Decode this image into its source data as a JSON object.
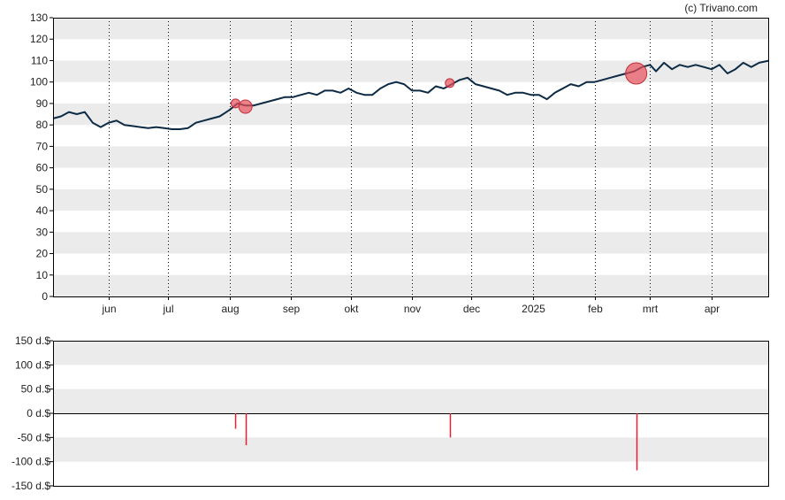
{
  "copyright": "(c) Trivano.com",
  "colors": {
    "band": "#ebebeb",
    "line": "#0d2b45",
    "marker": "#e8505b",
    "grid": "#000000",
    "frame": "#000000",
    "bar": "#e8202f"
  },
  "chart_data": [
    {
      "type": "line",
      "xlim": [
        "2024-05-04",
        "2025-04-30"
      ],
      "ylim": [
        0,
        130
      ],
      "y_ticks": [
        "0",
        "10",
        "20",
        "30",
        "40",
        "50",
        "60",
        "70",
        "80",
        "90",
        "100",
        "110",
        "120",
        "130"
      ],
      "x_ticks": [
        {
          "date": "2024-06-01",
          "label": "jun"
        },
        {
          "date": "2024-07-01",
          "label": "jul"
        },
        {
          "date": "2024-08-01",
          "label": "aug"
        },
        {
          "date": "2024-09-01",
          "label": "sep"
        },
        {
          "date": "2024-10-01",
          "label": "okt"
        },
        {
          "date": "2024-11-01",
          "label": "nov"
        },
        {
          "date": "2024-12-01",
          "label": "dec"
        },
        {
          "date": "2025-01-01",
          "label": "2025"
        },
        {
          "date": "2025-02-01",
          "label": "feb"
        },
        {
          "date": "2025-03-01",
          "label": "mrt"
        },
        {
          "date": "2025-04-01",
          "label": "apr"
        }
      ],
      "grid": "vertical dotted at month ticks, alternating horizontal bands",
      "series": [
        {
          "points": [
            [
              "2024-05-04",
              83
            ],
            [
              "2024-05-08",
              84
            ],
            [
              "2024-05-12",
              86
            ],
            [
              "2024-05-16",
              85
            ],
            [
              "2024-05-20",
              86
            ],
            [
              "2024-05-24",
              81
            ],
            [
              "2024-05-28",
              79
            ],
            [
              "2024-06-01",
              81
            ],
            [
              "2024-06-05",
              82
            ],
            [
              "2024-06-09",
              80
            ],
            [
              "2024-06-13",
              79.5
            ],
            [
              "2024-06-17",
              79
            ],
            [
              "2024-06-21",
              78.5
            ],
            [
              "2024-06-25",
              79
            ],
            [
              "2024-06-29",
              78.5
            ],
            [
              "2024-07-03",
              78
            ],
            [
              "2024-07-07",
              78
            ],
            [
              "2024-07-11",
              78.5
            ],
            [
              "2024-07-15",
              81
            ],
            [
              "2024-07-19",
              82
            ],
            [
              "2024-07-23",
              83
            ],
            [
              "2024-07-27",
              84
            ],
            [
              "2024-08-01",
              87
            ],
            [
              "2024-08-05",
              90
            ],
            [
              "2024-08-09",
              89
            ],
            [
              "2024-08-13",
              89
            ],
            [
              "2024-08-17",
              90
            ],
            [
              "2024-08-21",
              91
            ],
            [
              "2024-08-25",
              92
            ],
            [
              "2024-08-29",
              93
            ],
            [
              "2024-09-02",
              93
            ],
            [
              "2024-09-06",
              94
            ],
            [
              "2024-09-10",
              95
            ],
            [
              "2024-09-14",
              94
            ],
            [
              "2024-09-18",
              96
            ],
            [
              "2024-09-22",
              96
            ],
            [
              "2024-09-26",
              95
            ],
            [
              "2024-09-30",
              97
            ],
            [
              "2024-10-04",
              95
            ],
            [
              "2024-10-08",
              94
            ],
            [
              "2024-10-12",
              94
            ],
            [
              "2024-10-16",
              97
            ],
            [
              "2024-10-20",
              99
            ],
            [
              "2024-10-24",
              100
            ],
            [
              "2024-10-28",
              99
            ],
            [
              "2024-11-01",
              96
            ],
            [
              "2024-11-05",
              96
            ],
            [
              "2024-11-09",
              95
            ],
            [
              "2024-11-13",
              98
            ],
            [
              "2024-11-17",
              97
            ],
            [
              "2024-11-21",
              99
            ],
            [
              "2024-11-25",
              101
            ],
            [
              "2024-11-29",
              102
            ],
            [
              "2024-12-03",
              99
            ],
            [
              "2024-12-07",
              98
            ],
            [
              "2024-12-11",
              97
            ],
            [
              "2024-12-15",
              96
            ],
            [
              "2024-12-19",
              94
            ],
            [
              "2024-12-23",
              95
            ],
            [
              "2024-12-27",
              95
            ],
            [
              "2024-12-31",
              94
            ],
            [
              "2025-01-04",
              94
            ],
            [
              "2025-01-08",
              92
            ],
            [
              "2025-01-12",
              95
            ],
            [
              "2025-01-16",
              97
            ],
            [
              "2025-01-20",
              99
            ],
            [
              "2025-01-24",
              98
            ],
            [
              "2025-01-28",
              100
            ],
            [
              "2025-02-01",
              100
            ],
            [
              "2025-02-05",
              101
            ],
            [
              "2025-02-09",
              102
            ],
            [
              "2025-02-13",
              103
            ],
            [
              "2025-02-17",
              104
            ],
            [
              "2025-02-21",
              105
            ],
            [
              "2025-02-25",
              107
            ],
            [
              "2025-03-01",
              108
            ],
            [
              "2025-03-04",
              105
            ],
            [
              "2025-03-08",
              109
            ],
            [
              "2025-03-12",
              106
            ],
            [
              "2025-03-16",
              108
            ],
            [
              "2025-03-20",
              107
            ],
            [
              "2025-03-24",
              108
            ],
            [
              "2025-03-28",
              107
            ],
            [
              "2025-04-01",
              106
            ],
            [
              "2025-04-05",
              108
            ],
            [
              "2025-04-09",
              104
            ],
            [
              "2025-04-13",
              106
            ],
            [
              "2025-04-17",
              109
            ],
            [
              "2025-04-21",
              107
            ],
            [
              "2025-04-25",
              109
            ],
            [
              "2025-04-30",
              110
            ]
          ]
        }
      ],
      "markers": [
        {
          "date": "2024-08-04",
          "value": 90,
          "size": "small"
        },
        {
          "date": "2024-08-09",
          "value": 88.5,
          "size": "medium"
        },
        {
          "date": "2024-11-20",
          "value": 99.5,
          "size": "small"
        },
        {
          "date": "2025-02-22",
          "value": 104,
          "size": "large"
        }
      ]
    },
    {
      "type": "bar",
      "ylim": [
        -150,
        150
      ],
      "y_ticks": [
        "150 d.$",
        "100 d.$",
        "50 d.$",
        "0 d.$",
        "-50 d.$",
        "-100 d.$",
        "-150 d.$"
      ],
      "y_tick_values": [
        150,
        100,
        50,
        0,
        -50,
        -100,
        -150
      ],
      "bars": [
        {
          "date": "2024-08-04",
          "value": -32
        },
        {
          "date": "2024-08-09",
          "value": -66
        },
        {
          "date": "2024-11-20",
          "value": -50
        },
        {
          "date": "2025-02-22",
          "value": -118
        }
      ]
    }
  ]
}
